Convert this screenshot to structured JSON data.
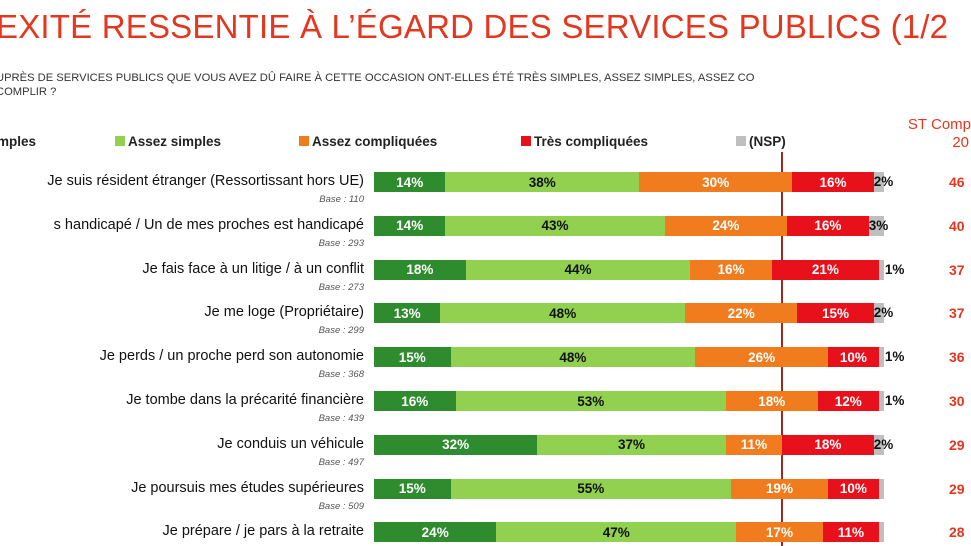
{
  "header": {
    "title": "EXITÉ RESSENTIE À L’ÉGARD DES SERVICES PUBLICS (1/2",
    "question_line1": "UPRÈS DE SERVICES PUBLICS QUE VOUS AVEZ DÛ FAIRE À CETTE OCCASION ONT-ELLES ÉTÉ TRÈS SIMPLES, ASSEZ SIMPLES, ASSEZ CO",
    "question_line2": "COMPLIR ?",
    "st_line1": "ST Comp",
    "st_line2": "20"
  },
  "legend": [
    {
      "label": "mples",
      "color": "#2e8b2e"
    },
    {
      "label": "Assez simples",
      "color": "#92d050"
    },
    {
      "label": "Assez compliquées",
      "color": "#f07c1e"
    },
    {
      "label": "Très compliquées",
      "color": "#e8101a"
    },
    {
      "label": "(NSP)",
      "color": "#bfbfbf"
    }
  ],
  "chart_data": {
    "type": "bar",
    "orientation": "horizontal",
    "stacked": true,
    "title": "EXITÉ RESSENTIE À L’ÉGARD DES SERVICES PUBLICS (1/2",
    "series_names": [
      "Très simples",
      "Assez simples",
      "Assez compliquées",
      "Très compliquées",
      "(NSP)"
    ],
    "series_colors": [
      "#2e8b2e",
      "#92d050",
      "#f07c1e",
      "#e8101a",
      "#bfbfbf"
    ],
    "rows": [
      {
        "label": "Je suis résident étranger (Ressortissant hors UE)",
        "base": "Base : 110",
        "values": [
          14,
          38,
          30,
          16,
          2
        ],
        "labels": [
          "14%",
          "38%",
          "30%",
          "16%",
          "2%"
        ],
        "st": "46"
      },
      {
        "label": "s handicapé / Un de mes proches est handicapé",
        "base": "Base : 293",
        "values": [
          14,
          43,
          24,
          16,
          3
        ],
        "labels": [
          "14%",
          "43%",
          "24%",
          "16%",
          "3%"
        ],
        "st": "40"
      },
      {
        "label": "Je fais face à un litige / à un conflit",
        "base": "Base : 273",
        "values": [
          18,
          44,
          16,
          21,
          1
        ],
        "labels": [
          "18%",
          "44%",
          "16%",
          "21%",
          "1%"
        ],
        "st": "37"
      },
      {
        "label": "Je me loge (Propriétaire)",
        "base": "Base : 299",
        "values": [
          13,
          48,
          22,
          15,
          2
        ],
        "labels": [
          "13%",
          "48%",
          "22%",
          "15%",
          "2%"
        ],
        "st": "37"
      },
      {
        "label": "Je perds / un proche perd son autonomie",
        "base": "Base : 368",
        "values": [
          15,
          48,
          26,
          10,
          1
        ],
        "labels": [
          "15%",
          "48%",
          "26%",
          "10%",
          "1%"
        ],
        "st": "36"
      },
      {
        "label": "Je tombe dans la précarité financière",
        "base": "Base : 439",
        "values": [
          16,
          53,
          18,
          12,
          1
        ],
        "labels": [
          "16%",
          "53%",
          "18%",
          "12%",
          "1%"
        ],
        "st": "30"
      },
      {
        "label": "Je conduis un véhicule",
        "base": "Base : 497",
        "values": [
          32,
          37,
          11,
          18,
          2
        ],
        "labels": [
          "32%",
          "37%",
          "11%",
          "18%",
          "2%"
        ],
        "st": "29"
      },
      {
        "label": "Je poursuis mes études supérieures",
        "base": "Base : 509",
        "values": [
          15,
          55,
          19,
          10,
          1
        ],
        "labels": [
          "15%",
          "55%",
          "19%",
          "10%",
          ""
        ],
        "st": "29"
      },
      {
        "label": "Je prépare / je pars à la retraite",
        "base": "",
        "values": [
          24,
          47,
          17,
          11,
          1
        ],
        "labels": [
          "24%",
          "47%",
          "17%",
          "11%",
          ""
        ],
        "st": "28"
      }
    ]
  }
}
